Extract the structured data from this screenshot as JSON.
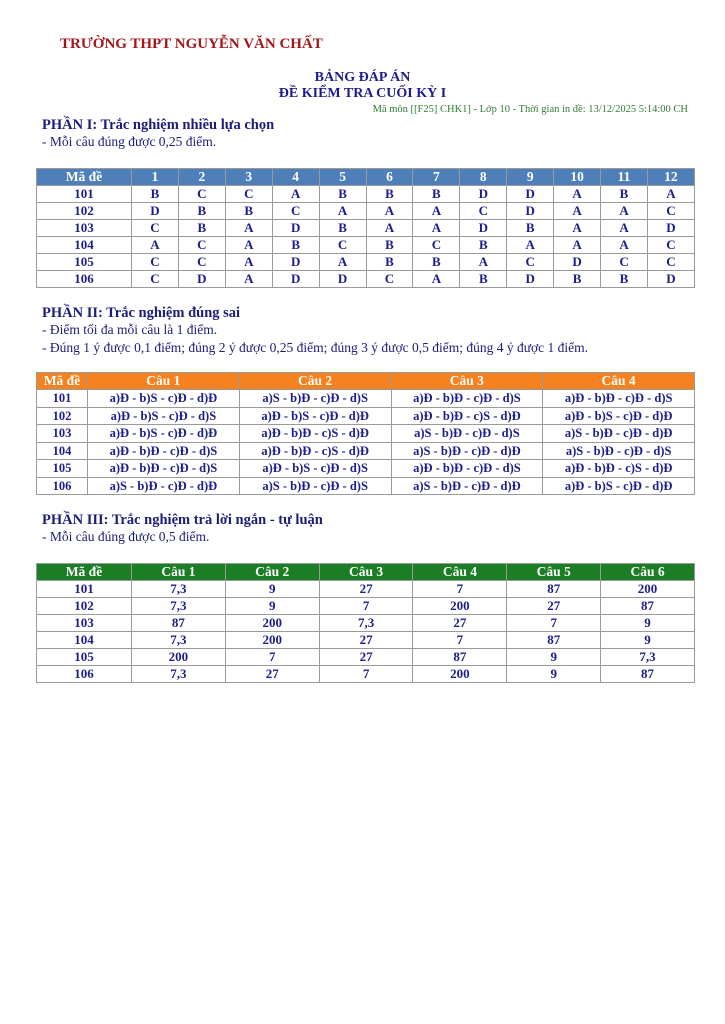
{
  "header": {
    "school": "TRƯỜNG THPT NGUYỄN VĂN CHẤT",
    "title_line1": "BẢNG ĐÁP ÁN",
    "title_line2": "ĐỀ KIỂM TRA CUỐI KỲ I",
    "meta": "Mã môn [[F25] CHK1] - Lớp 10 - Thời gian in đề: 13/12/2025 5:14:00 CH"
  },
  "part1": {
    "title": "PHẦN I: Trắc nghiệm nhiều lựa chọn",
    "notes": [
      "- Mỗi câu đúng được 0,25 điểm."
    ],
    "header": [
      "Mã đề",
      "1",
      "2",
      "3",
      "4",
      "5",
      "6",
      "7",
      "8",
      "9",
      "10",
      "11",
      "12"
    ],
    "rows": [
      [
        "101",
        "B",
        "C",
        "C",
        "A",
        "B",
        "B",
        "B",
        "D",
        "D",
        "A",
        "B",
        "A"
      ],
      [
        "102",
        "D",
        "B",
        "B",
        "C",
        "A",
        "A",
        "A",
        "C",
        "D",
        "A",
        "A",
        "C"
      ],
      [
        "103",
        "C",
        "B",
        "A",
        "D",
        "B",
        "A",
        "A",
        "D",
        "B",
        "A",
        "A",
        "D"
      ],
      [
        "104",
        "A",
        "C",
        "A",
        "B",
        "C",
        "B",
        "C",
        "B",
        "A",
        "A",
        "A",
        "C"
      ],
      [
        "105",
        "C",
        "C",
        "A",
        "D",
        "A",
        "B",
        "B",
        "A",
        "C",
        "D",
        "C",
        "C"
      ],
      [
        "106",
        "C",
        "D",
        "A",
        "D",
        "D",
        "C",
        "A",
        "B",
        "D",
        "B",
        "B",
        "D"
      ]
    ]
  },
  "part2": {
    "title": "PHẦN II: Trắc nghiệm đúng sai",
    "notes": [
      "- Điểm tối đa mỗi câu là 1 điểm.",
      "- Đúng 1 ý được 0,1 điểm; đúng 2 ý được 0,25 điểm; đúng 3 ý được 0,5 điểm; đúng 4 ý được 1 điểm."
    ],
    "header": [
      "Mã đề",
      "Câu 1",
      "Câu 2",
      "Câu 3",
      "Câu 4"
    ],
    "rows": [
      [
        "101",
        "a)Đ - b)S - c)Đ - d)Đ",
        "a)S - b)Đ - c)Đ - d)S",
        "a)Đ - b)Đ - c)Đ - d)S",
        "a)Đ - b)Đ - c)Đ - d)S"
      ],
      [
        "102",
        "a)Đ - b)S - c)Đ - d)S",
        "a)Đ - b)S - c)Đ - d)Đ",
        "a)Đ - b)Đ - c)S - d)Đ",
        "a)Đ - b)S - c)Đ - d)Đ"
      ],
      [
        "103",
        "a)Đ - b)S - c)Đ - d)Đ",
        "a)Đ - b)Đ - c)S - d)Đ",
        "a)S - b)Đ - c)Đ - d)S",
        "a)S - b)Đ - c)Đ - d)Đ"
      ],
      [
        "104",
        "a)Đ - b)Đ - c)Đ - d)S",
        "a)Đ - b)Đ - c)S - d)Đ",
        "a)S - b)Đ - c)Đ - d)Đ",
        "a)S - b)Đ - c)Đ - d)S"
      ],
      [
        "105",
        "a)Đ - b)Đ - c)Đ - d)S",
        "a)Đ - b)S - c)Đ - d)S",
        "a)Đ - b)Đ - c)Đ - d)S",
        "a)Đ - b)Đ - c)S - d)Đ"
      ],
      [
        "106",
        "a)S - b)Đ - c)Đ - d)Đ",
        "a)S - b)Đ - c)Đ - d)S",
        "a)S - b)Đ - c)Đ - d)Đ",
        "a)Đ - b)S - c)Đ - d)Đ"
      ]
    ]
  },
  "part3": {
    "title": "PHẦN III: Trắc nghiệm trả lời ngắn - tự luận",
    "notes": [
      "- Mỗi câu đúng được 0,5 điểm."
    ],
    "header": [
      "Mã đề",
      "Câu 1",
      "Câu 2",
      "Câu 3",
      "Câu 4",
      "Câu 5",
      "Câu 6"
    ],
    "rows": [
      [
        "101",
        "7,3",
        "9",
        "27",
        "7",
        "87",
        "200"
      ],
      [
        "102",
        "7,3",
        "9",
        "7",
        "200",
        "27",
        "87"
      ],
      [
        "103",
        "87",
        "200",
        "7,3",
        "27",
        "7",
        "9"
      ],
      [
        "104",
        "7,3",
        "200",
        "27",
        "7",
        "87",
        "9"
      ],
      [
        "105",
        "200",
        "7",
        "27",
        "87",
        "9",
        "7,3"
      ],
      [
        "106",
        "7,3",
        "27",
        "7",
        "200",
        "9",
        "87"
      ]
    ]
  }
}
